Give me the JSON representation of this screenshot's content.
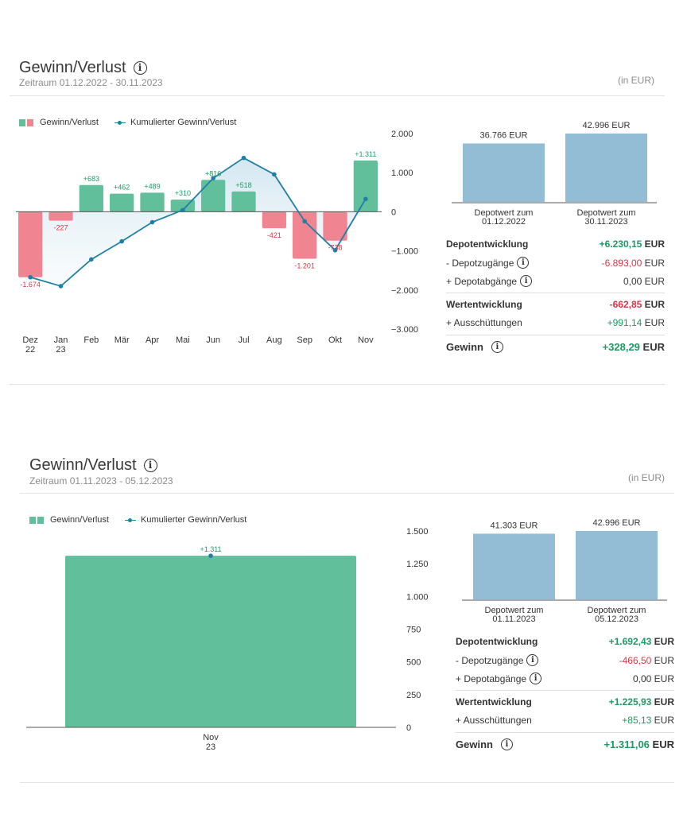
{
  "colors": {
    "positive": "#62bf9c",
    "negative": "#f08490",
    "cumulative": "#1f7fa6",
    "depot": "#93bdd4",
    "green_text": "#1d9a63",
    "red_text": "#dc3545"
  },
  "panels": [
    {
      "title": "Gewinn/Verlust",
      "period_label": "Zeitraum",
      "period_start": "01.12.2022",
      "period_sep": "-",
      "period_end": "30.11.2023",
      "unit": "(in EUR)",
      "legend": {
        "bars": "Gewinn/Verlust",
        "line": "Kumulierter Gewinn/Verlust"
      },
      "chart_data": {
        "type": "bar",
        "categories": [
          [
            "Dez",
            "22"
          ],
          [
            "Jan",
            "23"
          ],
          [
            "Feb"
          ],
          [
            "Mär"
          ],
          [
            "Apr"
          ],
          [
            "Mai"
          ],
          [
            "Jun"
          ],
          [
            "Jul"
          ],
          [
            "Aug"
          ],
          [
            "Sep"
          ],
          [
            "Okt"
          ],
          [
            "Nov"
          ]
        ],
        "series": [
          {
            "name": "Gewinn/Verlust",
            "type": "bar",
            "values": [
              -1674,
              -227,
              683,
              462,
              489,
              310,
              816,
              518,
              -421,
              -1201,
              -738,
              1311
            ],
            "labels": [
              "-1.674",
              "-227",
              "+683",
              "+462",
              "+489",
              "+310",
              "+816",
              "+518",
              "-421",
              "-1.201",
              "-738",
              "+1.311"
            ]
          },
          {
            "name": "Kumulierter Gewinn/Verlust",
            "type": "line",
            "values": [
              -1674,
              -1901,
              -1218,
              -756,
              -267,
              43,
              859,
              1377,
              956,
              -245,
              -983,
              328
            ]
          }
        ],
        "yticks": [
          2000,
          1000,
          0,
          -1000,
          -2000,
          -3000
        ],
        "ytick_labels": [
          "2.000",
          "1.000",
          "0",
          "−1.000",
          "−2.000",
          "−3.000"
        ],
        "ylim": [
          -3000,
          2000
        ]
      },
      "depot": {
        "values": [
          36766,
          42996
        ],
        "value_labels": [
          "36.766 EUR",
          "42.996 EUR"
        ],
        "captions": [
          [
            "Depotwert zum",
            "01.12.2022"
          ],
          [
            "Depotwert zum",
            "30.11.2023"
          ]
        ]
      },
      "summary": {
        "depotentwicklung": {
          "label": "Depotentwicklung",
          "value": "+6.230,15",
          "unit": "EUR"
        },
        "zugaenge": {
          "label": "- Depotzugänge",
          "value": "-6.893,00",
          "unit": "EUR"
        },
        "abgaenge": {
          "label": "+ Depotabgänge",
          "value": "0,00",
          "unit": "EUR"
        },
        "wertentwicklung": {
          "label": "Wertentwicklung",
          "value": "-662,85",
          "unit": "EUR"
        },
        "ausschuettungen": {
          "label": "+ Ausschüttungen",
          "value": "+991,14",
          "unit": "EUR"
        },
        "gewinn": {
          "label": "Gewinn",
          "value": "+328,29",
          "unit": "EUR"
        }
      }
    },
    {
      "title": "Gewinn/Verlust",
      "period_label": "Zeitraum",
      "period_start": "01.11.2023",
      "period_sep": "-",
      "period_end": "05.12.2023",
      "unit": "(in EUR)",
      "legend": {
        "bars": "Gewinn/Verlust",
        "line": "Kumulierter Gewinn/Verlust"
      },
      "chart_data": {
        "type": "bar",
        "categories": [
          [
            "Nov",
            "23"
          ]
        ],
        "series": [
          {
            "name": "Gewinn/Verlust",
            "type": "bar",
            "values": [
              1311
            ],
            "labels": [
              "+1.311"
            ]
          },
          {
            "name": "Kumulierter Gewinn/Verlust",
            "type": "line",
            "values": [
              1311
            ]
          }
        ],
        "yticks": [
          1500,
          1250,
          1000,
          750,
          500,
          250,
          0
        ],
        "ytick_labels": [
          "1.500",
          "1.250",
          "1.000",
          "750",
          "500",
          "250",
          "0"
        ],
        "ylim": [
          0,
          1500
        ]
      },
      "depot": {
        "values": [
          41303,
          42996
        ],
        "value_labels": [
          "41.303 EUR",
          "42.996 EUR"
        ],
        "captions": [
          [
            "Depotwert zum",
            "01.11.2023"
          ],
          [
            "Depotwert zum",
            "05.12.2023"
          ]
        ]
      },
      "summary": {
        "depotentwicklung": {
          "label": "Depotentwicklung",
          "value": "+1.692,43",
          "unit": "EUR"
        },
        "zugaenge": {
          "label": "- Depotzugänge",
          "value": "-466,50",
          "unit": "EUR"
        },
        "abgaenge": {
          "label": "+ Depotabgänge",
          "value": "0,00",
          "unit": "EUR"
        },
        "wertentwicklung": {
          "label": "Wertentwicklung",
          "value": "+1.225,93",
          "unit": "EUR"
        },
        "ausschuettungen": {
          "label": "+ Ausschüttungen",
          "value": "+85,13",
          "unit": "EUR"
        },
        "gewinn": {
          "label": "Gewinn",
          "value": "+1.311,06",
          "unit": "EUR"
        }
      }
    }
  ]
}
